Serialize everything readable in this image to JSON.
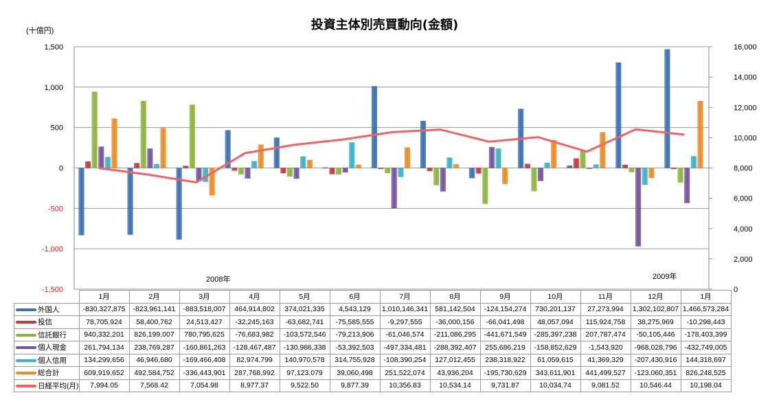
{
  "chart_data": {
    "type": "bar+line",
    "title": "投資主体別売買動向(金額)",
    "y_left_unit": "(十億円)",
    "y_left_lim": [
      -1500,
      1500
    ],
    "y_left_ticks": [
      "1,500",
      "1,000",
      "500",
      "0",
      "-500",
      "-1,000",
      "-1,500"
    ],
    "y_right_lim": [
      0,
      16000
    ],
    "y_right_ticks": [
      "16,000",
      "14,000",
      "12,000",
      "10,000",
      "8,000",
      "6,000",
      "4,000",
      "2,000",
      "0"
    ],
    "grid": true,
    "year_labels": [
      "2008年",
      "2009年"
    ],
    "categories": [
      "1月",
      "2月",
      "3月",
      "4月",
      "5月",
      "6月",
      "7月",
      "8月",
      "9月",
      "10月",
      "11月",
      "12月",
      "1月"
    ],
    "series": [
      {
        "name": "外国人",
        "type": "bar",
        "color": "#3d6fb4",
        "values": [
          "-830,327,875",
          "-823,961,141",
          "-883,518,007",
          "464,914,802",
          "374,021,335",
          "4,543,129",
          "1,010,146,341",
          "581,142,504",
          "-124,154,274",
          "730,201,137",
          "27,273,994",
          "1,302,102,807",
          "1,466,573,284"
        ]
      },
      {
        "name": "投信",
        "type": "bar",
        "color": "#c43a3a",
        "values": [
          "78,705,924",
          "58,400,762",
          "24,513,427",
          "-32,245,163",
          "-63,682,741",
          "-75,585,555",
          "-9,297,555",
          "-36,000,156",
          "-66,041,498",
          "48,057,094",
          "115,924,758",
          "38,275,969",
          "-10,298,443"
        ]
      },
      {
        "name": "信託銀行",
        "type": "bar",
        "color": "#8cb43c",
        "values": [
          "940,332,201",
          "826,199,007",
          "780,795,625",
          "-76,683,982",
          "-103,572,546",
          "-79,213,906",
          "-61,046,574",
          "-211,086,295",
          "-441,671,549",
          "-285,397,238",
          "207,787,474",
          "-50,105,446",
          "-178,403,399"
        ]
      },
      {
        "name": "個人現金",
        "type": "bar",
        "color": "#7354a0",
        "values": [
          "261,794,134",
          "238,769,287",
          "-160,861,263",
          "-128,467,487",
          "-130,986,338",
          "-53,392,503",
          "-497,334,481",
          "-288,392,407",
          "255,686,219",
          "-158,852,629",
          "-1,543,920",
          "-968,028,796",
          "-432,749,005"
        ]
      },
      {
        "name": "個人信用",
        "type": "bar",
        "color": "#3bb1c9",
        "values": [
          "134,299,656",
          "46,946,680",
          "-169,466,408",
          "82,974,799",
          "140,970,578",
          "314,755,928",
          "-108,390,254",
          "127,012,455",
          "238,318,922",
          "61,059,615",
          "41,369,329",
          "-207,430,916",
          "144,318,697"
        ]
      },
      {
        "name": "総合計",
        "type": "bar",
        "color": "#f08a24",
        "values": [
          "609,919,652",
          "492,584,752",
          "-336,443,901",
          "287,768,992",
          "97,123,079",
          "39,060,498",
          "251,522,074",
          "43,936,204",
          "-195,730,629",
          "343,611,901",
          "441,499,527",
          "-123,060,351",
          "826,248,525"
        ]
      },
      {
        "name": "日経平均(月)",
        "type": "line",
        "axis": "right",
        "color": "#f26262",
        "values": [
          "7,994.05",
          "7,568.42",
          "7,054.98",
          "8,977.37",
          "9,522.50",
          "9,877.39",
          "10,356.83",
          "10,534.14",
          "9,731.87",
          "10,034.74",
          "9,081.52",
          "10,546.44",
          "10,198.04"
        ]
      }
    ]
  }
}
